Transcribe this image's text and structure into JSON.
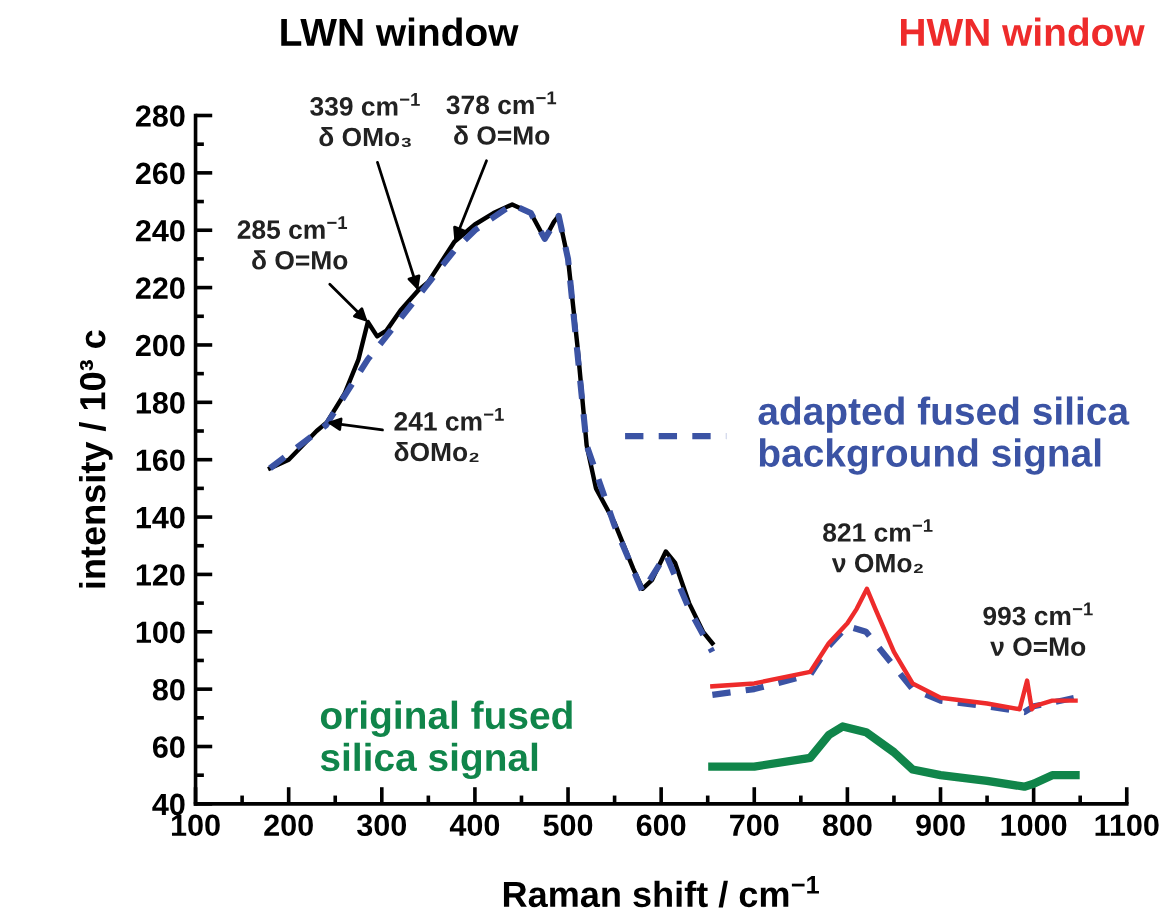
{
  "chart_data": {
    "type": "line",
    "xlabel": "Raman shift / cm$^{−1}$",
    "ylabel": "intensity / 10³ c",
    "xlim": [
      100,
      1100
    ],
    "ylim": [
      40,
      280
    ],
    "xticks": [
      100,
      200,
      300,
      400,
      500,
      600,
      700,
      800,
      900,
      1000,
      1100
    ],
    "yticks": [
      40,
      60,
      80,
      100,
      120,
      140,
      160,
      180,
      200,
      220,
      240,
      260,
      280
    ],
    "grid": false,
    "legend": "right",
    "series": [
      {
        "name": "LWN window",
        "color": "#000000",
        "line_style": "solid",
        "x": [
          180,
          200,
          230,
          241,
          260,
          275,
          285,
          295,
          305,
          320,
          339,
          350,
          378,
          400,
          420,
          440,
          460,
          475,
          485,
          490,
          500,
          510,
          520,
          530,
          550,
          570,
          580,
          590,
          605,
          615,
          630,
          645,
          655
        ],
        "values": [
          157,
          160,
          170,
          173,
          183,
          195,
          208,
          203,
          205,
          212,
          219,
          222,
          236,
          242,
          246,
          249,
          246,
          237,
          243,
          245,
          230,
          200,
          165,
          150,
          138,
          122,
          115,
          118,
          128,
          124,
          110,
          100,
          96
        ]
      },
      {
        "name": "adapted fused silica background signal",
        "color": "#3b53a4",
        "line_style": "dashed",
        "x": [
          180,
          240,
          285,
          300,
          339,
          378,
          400,
          440,
          460,
          475,
          490,
          500,
          520,
          550,
          580,
          605,
          630,
          655
        ],
        "values": [
          157,
          172,
          195,
          201,
          217,
          233,
          240,
          249,
          246,
          237,
          245,
          230,
          165,
          137,
          114,
          127,
          108,
          93
        ]
      },
      {
        "color": "#3b53a4",
        "line_style": "dashed",
        "x": [
          655,
          700,
          760,
          780,
          800,
          820,
          840,
          870,
          900,
          950,
          990,
          1000,
          1030,
          1045
        ],
        "values": [
          78,
          80,
          85,
          95,
          102,
          100,
          92,
          80,
          76,
          74,
          72,
          74,
          76,
          77
        ]
      },
      {
        "name": "HWN window",
        "color": "#ee2b2b",
        "line_style": "solid",
        "x": [
          655,
          700,
          760,
          780,
          800,
          810,
          821,
          830,
          850,
          870,
          900,
          950,
          985,
          993,
          998,
          1000,
          1020,
          1045
        ],
        "values": [
          81,
          82,
          86,
          96,
          103,
          108,
          115,
          108,
          93,
          82,
          77,
          75,
          73,
          83,
          73,
          74,
          76,
          76
        ]
      },
      {
        "name": "original fused silica signal",
        "color": "#10854a",
        "line_style": "solid",
        "x": [
          655,
          700,
          760,
          780,
          795,
          820,
          850,
          870,
          900,
          950,
          990,
          1000,
          1020,
          1045
        ],
        "values": [
          53,
          53,
          56,
          64,
          67,
          65,
          58,
          52,
          50,
          48,
          46,
          47,
          50,
          50
        ]
      }
    ],
    "annotations": [
      {
        "text": "285 cm$^{−1}$\nδ O=Mo",
        "x": 285,
        "y": 208
      },
      {
        "text": "339 cm$^{−1}$\nδ OMo₃",
        "x": 339,
        "y": 219
      },
      {
        "text": "378 cm$^{−1}$\nδ O=Mo",
        "x": 378,
        "y": 236
      },
      {
        "text": "241 cm$^{−1}$\nδOMo₂",
        "x": 241,
        "y": 173
      },
      {
        "text": "821 cm$^{−1}$\nν OMo₂",
        "x": 821,
        "y": 115
      },
      {
        "text": "993 cm$^{−1}$\nν O=Mo",
        "x": 993,
        "y": 83
      }
    ]
  }
}
